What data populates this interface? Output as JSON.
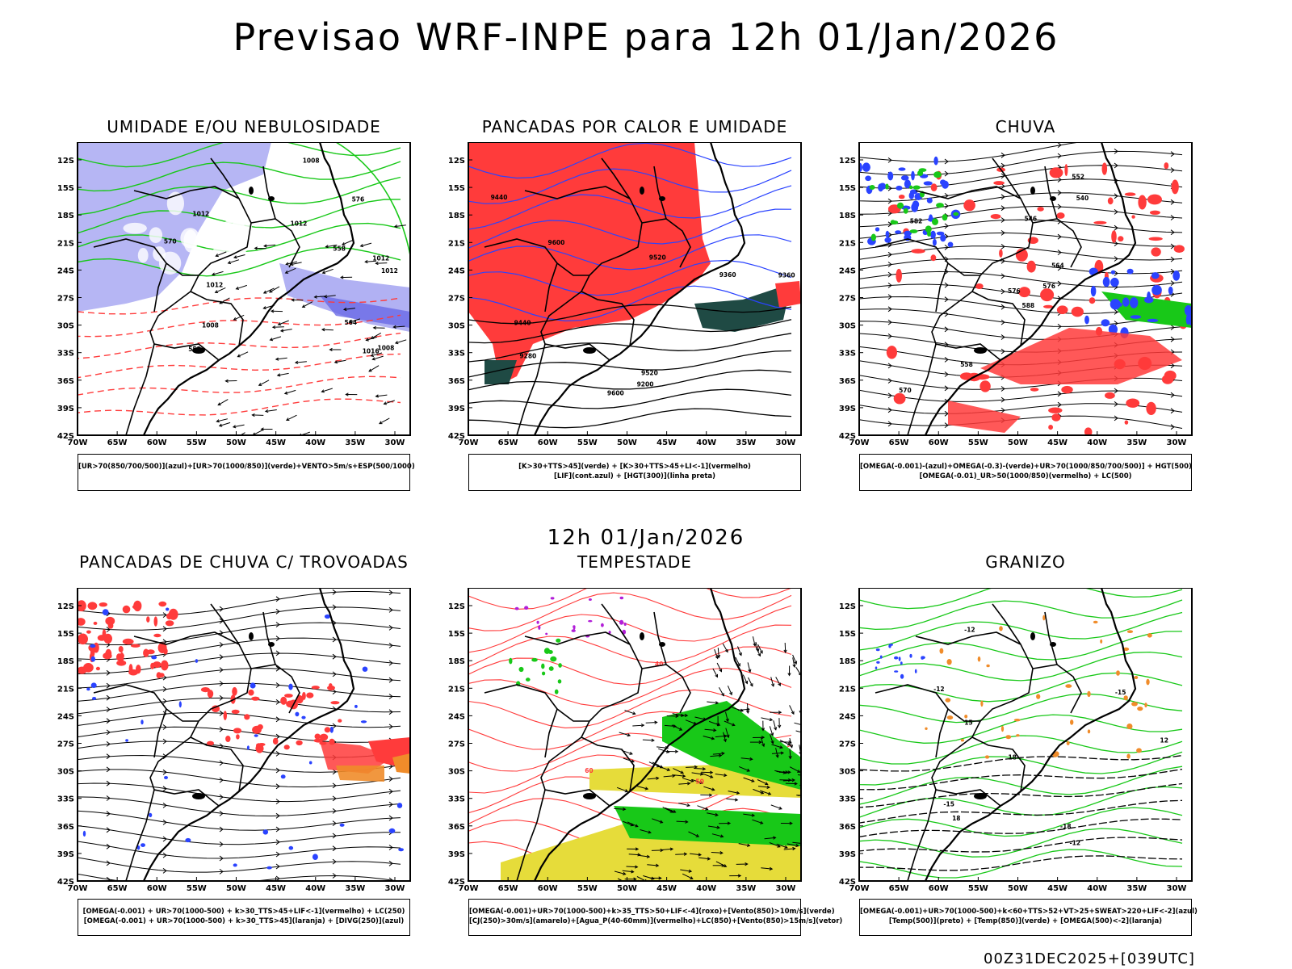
{
  "title": "Previsao WRF-INPE  para 12h 01/Jan/2026",
  "middle_title": "12h 01/Jan/2026",
  "footer_stamp": "00Z31DEC2025+[039UTC]",
  "axes": {
    "lat_labels": [
      "12S",
      "15S",
      "18S",
      "21S",
      "24S",
      "27S",
      "30S",
      "33S",
      "36S",
      "39S",
      "42S"
    ],
    "lon_labels": [
      "70W",
      "65W",
      "60W",
      "55W",
      "50W",
      "45W",
      "40W",
      "35W",
      "30W"
    ]
  },
  "colors": {
    "red": "#ff3b3b",
    "green": "#18c818",
    "blue": "#2a43ff",
    "lavender": "#a9a9f2",
    "yellow": "#e6dc3a",
    "orange": "#f08c2a",
    "darkteal": "#1f4a44",
    "purple": "#b21fd8"
  },
  "panels": [
    {
      "title": "UMIDADE E/OU NEBULOSIDADE",
      "legend": [
        "[UR>70(850/700/500)](azul)+[UR>70(1000/850)](verde)+VENTO>5m/s+ESP(500/1000)"
      ],
      "contour_labels": [
        "1012",
        "1012",
        "1012",
        "1012",
        "1012",
        "1008",
        "1008",
        "1008",
        "1016",
        "576",
        "570",
        "564",
        "558",
        "552"
      ]
    },
    {
      "title": "PANCADAS POR CALOR E UMIDADE",
      "legend": [
        "[K>30+TTS>45](verde) + [K>30+TTS>45+LI<-1](vermelho)",
        "[LIF](cont.azul) + [HGT(300)](linha preta)"
      ],
      "contour_labels": [
        "9600",
        "9520",
        "9520",
        "9440",
        "9360",
        "9280",
        "9200",
        "9440",
        "9360",
        "9600"
      ]
    },
    {
      "title": "CHUVA",
      "legend": [
        "[OMEGA(-0.001)-(azul)+OMEGA(-0.3)-(verde)+UR>70(1000/850/700/500)] + HGT(500)",
        "[OMEGA(-0.01)_UR>50(1000/850)(vermelho) + LC(500)"
      ],
      "contour_labels": [
        "588",
        "582",
        "576",
        "570",
        "564",
        "558",
        "552",
        "546",
        "540",
        "576"
      ]
    },
    {
      "title": "PANCADAS DE CHUVA C/ TROVOADAS",
      "legend": [
        "[OMEGA(-0.001) + UR>70(1000-500) + k>30_TTS>45+LIF<-1](vermelho) + LC(250)",
        "[OMEGA(-0.001) + UR>70(1000-500) + k>30_TTS>45](laranja) + [DIVG(250)](azul)"
      ],
      "contour_labels": []
    },
    {
      "title": "TEMPESTADE",
      "legend": [
        "[OMEGA(-0.001)+UR>70(1000-500)+k>35_TTS>50+LIF<-4](roxo)+[Vento(850)>10m/s](verde)",
        "[CJ(250)>30m/s](amarelo)+[Agua_P(40-60mm)](vermelho)+LC(850)+[Vento(850)>15m/s](vetor)"
      ],
      "contour_labels": [
        "40",
        "50",
        "60"
      ]
    },
    {
      "title": "GRANIZO",
      "legend": [
        "[OMEGA(-0.001)+UR>70(1000-500)+k<60+TTS>52+VT>25+SWEAT>220+LIF<-2](azul)",
        "[Temp(500)](preto) + [Temp(850)](verde) + [OMEGA(500)<-2](laranja)"
      ],
      "contour_labels": [
        "-12",
        "-12",
        "-15",
        "-12",
        "-15",
        "-18",
        "12",
        "15",
        "18",
        "18"
      ]
    }
  ]
}
